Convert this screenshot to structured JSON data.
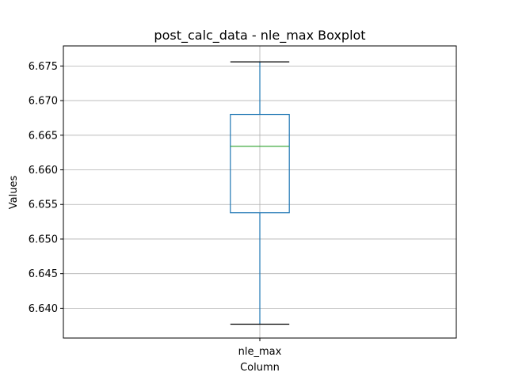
{
  "chart_data": {
    "type": "box",
    "title": "post_calc_data - nle_max Boxplot",
    "xlabel": "Column",
    "ylabel": "Values",
    "categories": [
      "nle_max"
    ],
    "boxes": [
      {
        "category": "nle_max",
        "whisker_low": 6.6377,
        "q1": 6.6538,
        "median": 6.6634,
        "q3": 6.668,
        "whisker_high": 6.6756
      }
    ],
    "ylim": [
      6.6357,
      6.6779
    ],
    "yticks": [
      "6.640",
      "6.645",
      "6.650",
      "6.655",
      "6.660",
      "6.665",
      "6.670",
      "6.675"
    ],
    "grid": true,
    "colors": {
      "box": "#1f77b4",
      "median": "#2ca02c",
      "whisker": "#1f77b4",
      "cap": "#000000",
      "grid": "#b0b0b0"
    }
  }
}
